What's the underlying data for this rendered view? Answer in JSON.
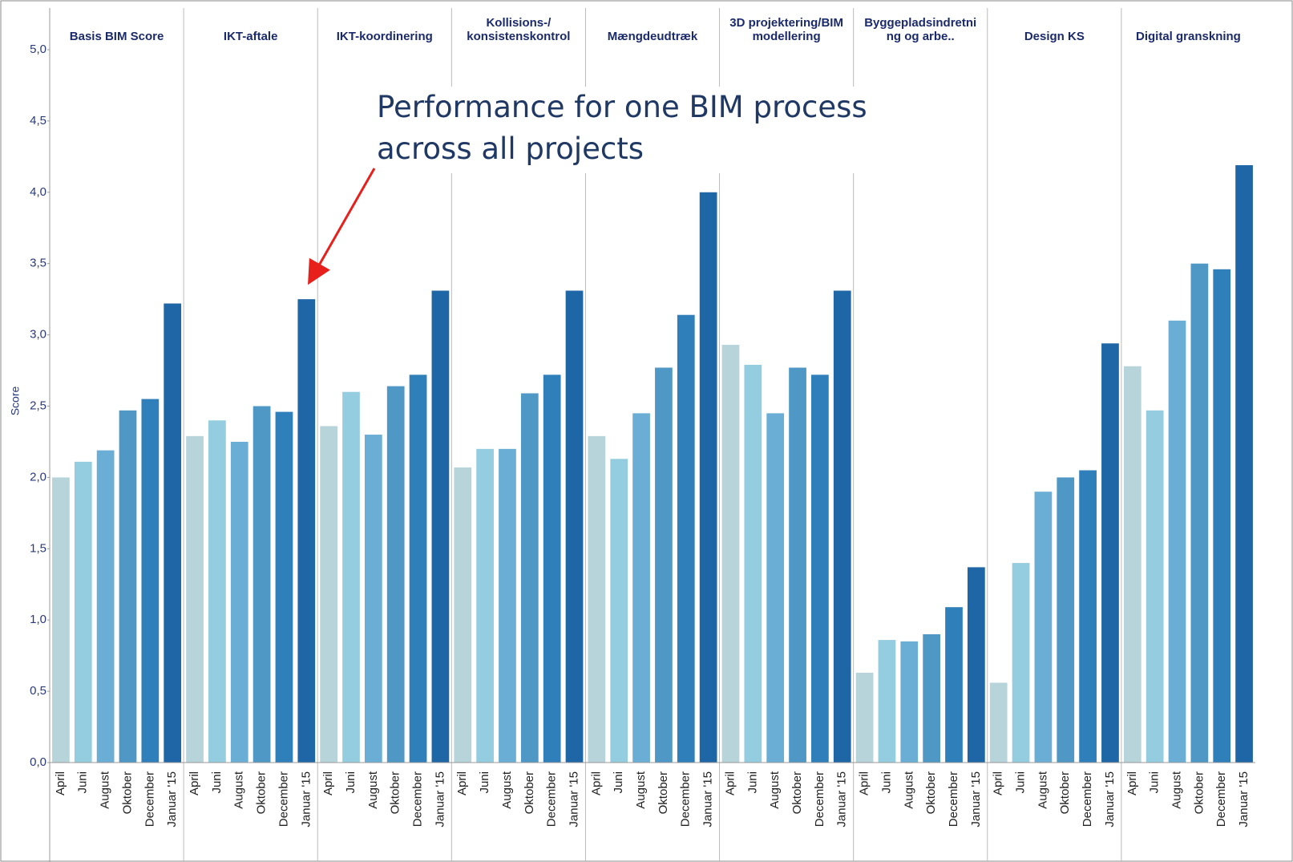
{
  "chart_data": {
    "type": "bar",
    "y_label": "Score",
    "annotation": "Performance for one BIM process\nacross all projects",
    "categories": [
      "Basis BIM Score",
      "IKT-aftale",
      "IKT-koordinering",
      "Kollisions-/\nkonsistenskontrol",
      "Mængdeudtræk",
      "3D projektering/BIM\nmodellering",
      "Byggepladsindretni\nng og arbe..",
      "Design KS",
      "Digital granskning"
    ],
    "series": [
      {
        "name": "April",
        "color": "#b6d4da",
        "values": [
          2.0,
          2.29,
          2.36,
          2.07,
          2.29,
          2.93,
          0.63,
          0.56,
          2.78
        ]
      },
      {
        "name": "Juni",
        "color": "#94cde0",
        "values": [
          2.11,
          2.4,
          2.6,
          2.2,
          2.13,
          2.79,
          0.86,
          1.4,
          2.47
        ]
      },
      {
        "name": "August",
        "color": "#6aaed6",
        "values": [
          2.19,
          2.25,
          2.3,
          2.2,
          2.45,
          2.45,
          0.85,
          1.9,
          3.1
        ]
      },
      {
        "name": "Oktober",
        "color": "#4f97c5",
        "values": [
          2.47,
          2.5,
          2.64,
          2.59,
          2.77,
          2.77,
          0.9,
          2.0,
          3.5
        ]
      },
      {
        "name": "December",
        "color": "#2f7fba",
        "values": [
          2.55,
          2.46,
          2.72,
          2.72,
          3.14,
          2.72,
          1.09,
          2.05,
          3.46
        ]
      },
      {
        "name": "Januar '15",
        "color": "#1f66a6",
        "values": [
          3.22,
          3.25,
          3.31,
          3.31,
          4.0,
          3.31,
          1.37,
          2.94,
          4.19
        ]
      }
    ],
    "ylim": [
      0,
      5
    ],
    "yticks": [
      {
        "value": 0,
        "label": "0,0"
      },
      {
        "value": 0.5,
        "label": "0,5"
      },
      {
        "value": 1,
        "label": "1,0"
      },
      {
        "value": 1.5,
        "label": "1,5"
      },
      {
        "value": 2,
        "label": "2,0"
      },
      {
        "value": 2.5,
        "label": "2,5"
      },
      {
        "value": 3,
        "label": "3,0"
      },
      {
        "value": 3.5,
        "label": "3,5"
      },
      {
        "value": 4,
        "label": "4,0"
      },
      {
        "value": 4.5,
        "label": "4,5"
      },
      {
        "value": 5,
        "label": "5,0"
      }
    ],
    "grid": false
  }
}
